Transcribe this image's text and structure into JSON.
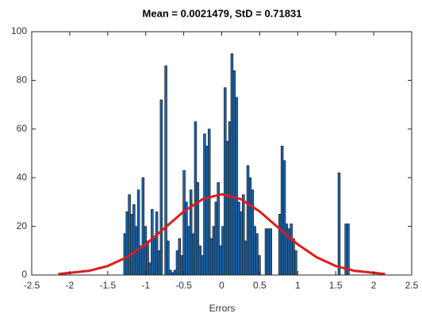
{
  "chart_data": {
    "type": "histogram",
    "title": "Mean = 0.0021479, StD = 0.71831",
    "xlabel": "Errors",
    "bins": [
      -1.29,
      -1.26,
      -1.23,
      -1.2,
      -1.17,
      -1.14,
      -1.11,
      -1.08,
      -1.05,
      -1.02,
      -0.99,
      -0.96,
      -0.93,
      -0.9,
      -0.87,
      -0.84,
      -0.81,
      -0.78,
      -0.75,
      -0.72,
      -0.69,
      -0.66,
      -0.63,
      -0.6,
      -0.57,
      -0.54,
      -0.51,
      -0.48,
      -0.45,
      -0.42,
      -0.39,
      -0.36,
      -0.33,
      -0.3,
      -0.27,
      -0.24,
      -0.21,
      -0.18,
      -0.15,
      -0.12,
      -0.09,
      -0.06,
      -0.03,
      0,
      0.03,
      0.06,
      0.09,
      0.12,
      0.15,
      0.18,
      0.21,
      0.24,
      0.27,
      0.3,
      0.33,
      0.36,
      0.39,
      0.42,
      0.45,
      0.48,
      0.51,
      0.54,
      0.57,
      0.6,
      0.63,
      0.66,
      0.69,
      0.72,
      0.75,
      0.78,
      0.81,
      0.84,
      0.87,
      0.9,
      0.93,
      0.96,
      0.99,
      1.02,
      1.05,
      1.08,
      1.11,
      1.14,
      1.17,
      1.2,
      1.23,
      1.26,
      1.29,
      1.32,
      1.35,
      1.38,
      1.41,
      1.44,
      1.47,
      1.5,
      1.53,
      1.56,
      1.59,
      1.62,
      1.65,
      1.68,
      1.71
    ],
    "values": [
      17,
      26,
      33,
      25,
      29,
      20,
      35,
      12,
      40,
      20,
      14,
      5,
      27,
      15,
      26,
      10,
      72,
      0,
      86,
      14,
      2,
      1,
      2,
      10,
      15,
      8,
      43,
      30,
      20,
      35,
      17,
      63,
      38,
      12,
      8,
      58,
      53,
      60,
      15,
      20,
      30,
      38,
      12,
      20,
      77,
      55,
      63,
      91,
      84,
      73,
      30,
      26,
      33,
      14,
      45,
      40,
      35,
      20,
      17,
      8,
      0,
      0,
      19,
      19,
      19,
      0,
      0,
      0,
      25,
      53,
      47,
      21,
      19,
      21,
      15,
      10,
      0,
      0,
      0,
      0,
      0,
      0,
      0,
      0,
      0,
      0,
      0,
      0,
      0,
      0,
      0,
      0,
      0,
      0,
      42,
      0,
      0,
      21,
      21,
      0
    ],
    "color": "#1f64a8",
    "edgecolor": "#111111",
    "fit": {
      "type": "line",
      "color": "#dd1c1c",
      "x": [
        -2.15,
        -1.75,
        -1.5,
        -1.25,
        -1,
        -0.75,
        -0.5,
        -0.25,
        0,
        0.25,
        0.5,
        0.75,
        1,
        1.25,
        1.5,
        1.75,
        2.15
      ],
      "values": [
        0.4,
        1.7,
        3.7,
        7.3,
        12.6,
        19.3,
        26.1,
        31.2,
        33.2,
        31.2,
        26.1,
        19.3,
        12.6,
        7.3,
        3.7,
        1.7,
        0.4
      ]
    },
    "xlim": [
      -2.5,
      2.5
    ],
    "xticks": [
      -2.5,
      -2,
      -1.5,
      -1,
      -0.5,
      0,
      0.5,
      1,
      1.5,
      2,
      2.5
    ],
    "ylim": [
      0,
      100
    ],
    "yticks": [
      0,
      20,
      40,
      60,
      80,
      100
    ],
    "grid": false
  }
}
